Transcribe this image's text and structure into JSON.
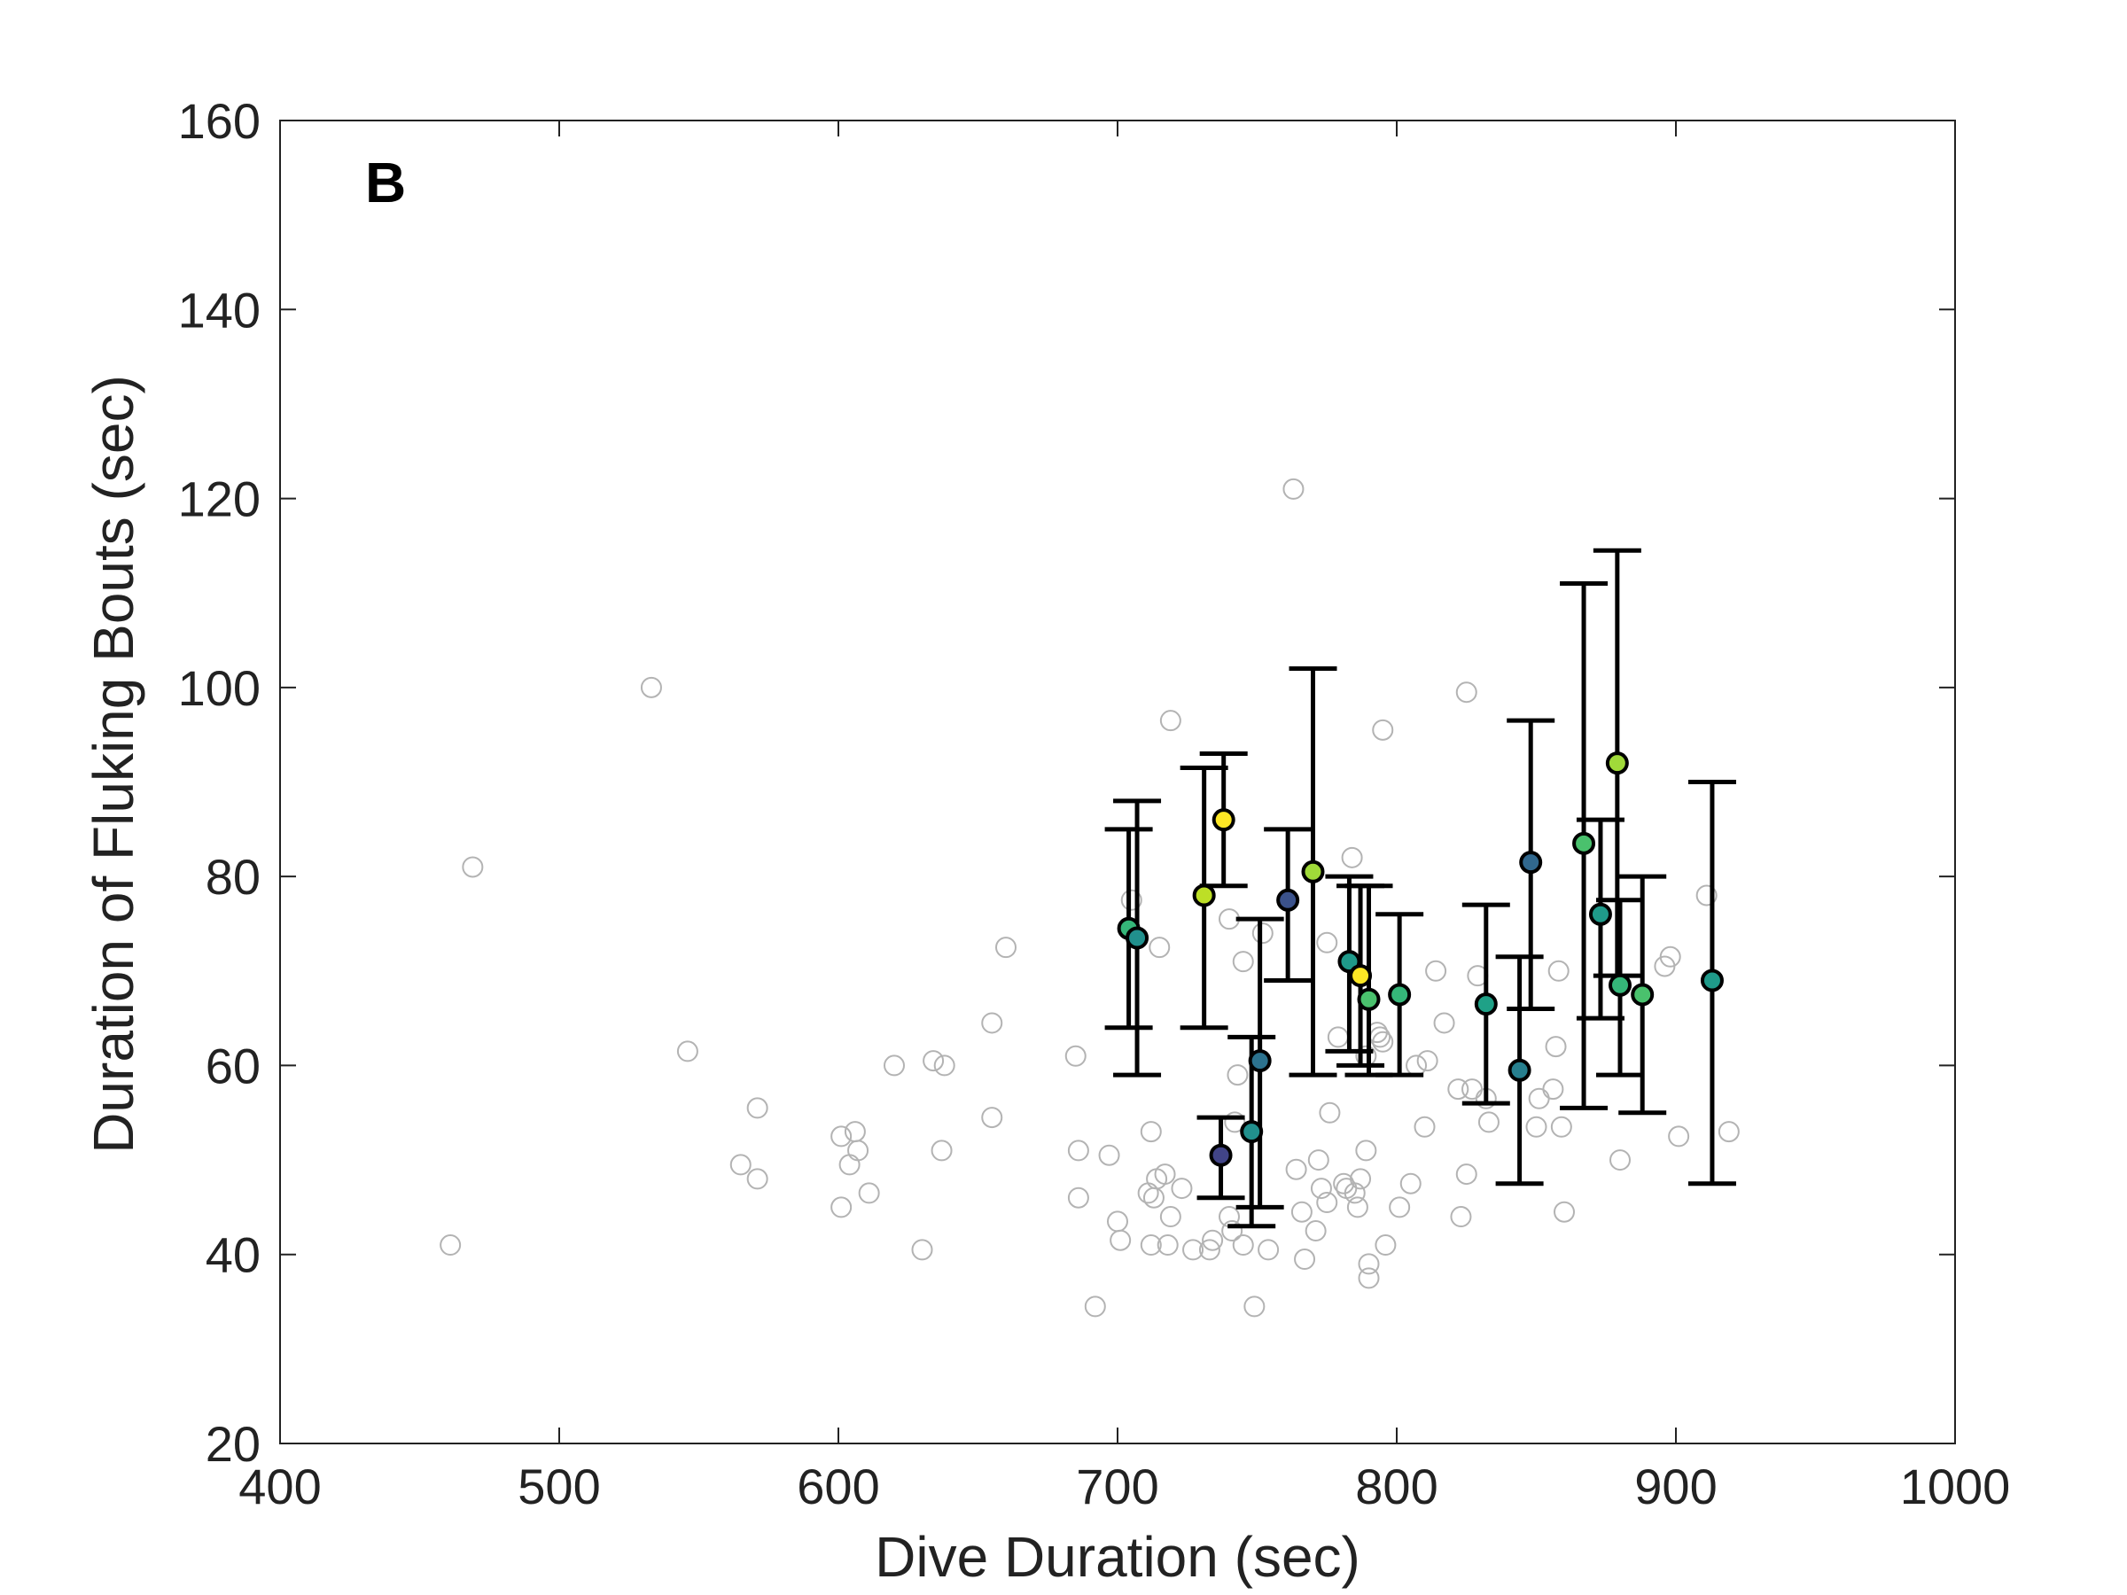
{
  "chart_data": {
    "type": "scatter",
    "title": "",
    "panel_label": "B",
    "xlabel": "Dive Duration (sec)",
    "ylabel": "Duration of Fluking Bouts (sec)",
    "xlim": [
      400,
      1000
    ],
    "ylim": [
      20,
      160
    ],
    "xticks": [
      400,
      500,
      600,
      700,
      800,
      900,
      1000
    ],
    "yticks": [
      20,
      40,
      60,
      80,
      100,
      120,
      140,
      160
    ],
    "grid": false,
    "legend": "none",
    "colors": {
      "background_point": "#b3b3b3",
      "error_bar": "#000000",
      "axis": "#222222"
    },
    "background_points": [
      [
        461,
        41
      ],
      [
        469,
        81
      ],
      [
        533,
        100
      ],
      [
        546,
        61.5
      ],
      [
        565,
        49.5
      ],
      [
        571,
        55.5
      ],
      [
        571,
        48
      ],
      [
        601,
        52.5
      ],
      [
        601,
        45
      ],
      [
        604,
        49.5
      ],
      [
        606,
        53
      ],
      [
        607,
        51
      ],
      [
        611,
        46.5
      ],
      [
        620,
        60
      ],
      [
        630,
        40.5
      ],
      [
        634,
        60.5
      ],
      [
        637,
        51
      ],
      [
        638,
        60
      ],
      [
        655,
        54.5
      ],
      [
        655,
        64.5
      ],
      [
        660,
        72.5
      ],
      [
        685,
        61
      ],
      [
        686,
        51
      ],
      [
        686,
        46
      ],
      [
        692,
        34.5
      ],
      [
        697,
        50.5
      ],
      [
        700,
        43.5
      ],
      [
        701,
        41.5
      ],
      [
        705,
        77.5
      ],
      [
        711,
        46.5
      ],
      [
        712,
        41
      ],
      [
        712,
        53
      ],
      [
        713,
        46
      ],
      [
        714,
        48
      ],
      [
        715,
        72.5
      ],
      [
        717,
        48.5
      ],
      [
        718,
        41
      ],
      [
        719,
        96.5
      ],
      [
        719,
        44
      ],
      [
        723,
        47
      ],
      [
        727,
        40.5
      ],
      [
        733,
        40.5
      ],
      [
        734,
        41.5
      ],
      [
        740,
        75.5
      ],
      [
        740,
        44
      ],
      [
        741,
        42.5
      ],
      [
        742,
        54
      ],
      [
        743,
        59
      ],
      [
        745,
        41
      ],
      [
        745,
        71
      ],
      [
        749,
        34.5
      ],
      [
        752,
        74
      ],
      [
        754,
        40.5
      ],
      [
        763,
        121
      ],
      [
        764,
        49
      ],
      [
        766,
        44.5
      ],
      [
        767,
        39.5
      ],
      [
        771,
        42.5
      ],
      [
        772,
        50
      ],
      [
        773,
        47
      ],
      [
        775,
        45.5
      ],
      [
        775,
        73
      ],
      [
        776,
        55
      ],
      [
        779,
        63
      ],
      [
        781,
        47.5
      ],
      [
        782,
        47
      ],
      [
        784,
        82
      ],
      [
        785,
        46.5
      ],
      [
        786,
        45
      ],
      [
        787,
        48
      ],
      [
        789,
        61
      ],
      [
        789,
        51
      ],
      [
        790,
        39
      ],
      [
        790,
        37.5
      ],
      [
        793,
        63.5
      ],
      [
        794,
        63
      ],
      [
        795,
        62.5
      ],
      [
        795,
        95.5
      ],
      [
        796,
        41
      ],
      [
        801,
        45
      ],
      [
        805,
        47.5
      ],
      [
        807,
        60
      ],
      [
        810,
        53.5
      ],
      [
        811,
        60.5
      ],
      [
        814,
        70
      ],
      [
        817,
        64.5
      ],
      [
        822,
        57.5
      ],
      [
        823,
        44
      ],
      [
        825,
        48.5
      ],
      [
        825,
        99.5
      ],
      [
        827,
        57.5
      ],
      [
        829,
        69.5
      ],
      [
        832,
        56.5
      ],
      [
        833,
        54
      ],
      [
        850,
        53.5
      ],
      [
        851,
        56.5
      ],
      [
        856,
        57.5
      ],
      [
        857,
        62
      ],
      [
        858,
        70
      ],
      [
        859,
        53.5
      ],
      [
        860,
        44.5
      ],
      [
        880,
        50
      ],
      [
        896,
        70.5
      ],
      [
        898,
        71.5
      ],
      [
        901,
        52.5
      ],
      [
        911,
        78
      ],
      [
        919,
        53
      ]
    ],
    "series": [
      {
        "x": 704,
        "y": 74.5,
        "low": 64,
        "high": 85,
        "color": "#35b779"
      },
      {
        "x": 707,
        "y": 73.5,
        "low": 59,
        "high": 88,
        "color": "#21908d"
      },
      {
        "x": 731,
        "y": 78,
        "low": 64,
        "high": 91.5,
        "color": "#bddf26"
      },
      {
        "x": 737,
        "y": 50.5,
        "low": 46,
        "high": 54.5,
        "color": "#414487"
      },
      {
        "x": 738,
        "y": 86,
        "low": 79,
        "high": 93,
        "color": "#fde725"
      },
      {
        "x": 748,
        "y": 53,
        "low": 43,
        "high": 63,
        "color": "#21908d"
      },
      {
        "x": 751,
        "y": 60.5,
        "low": 45,
        "high": 75.5,
        "color": "#2c728e"
      },
      {
        "x": 761,
        "y": 77.5,
        "low": 69,
        "high": 85,
        "color": "#3b528b"
      },
      {
        "x": 770,
        "y": 80.5,
        "low": 59,
        "high": 102,
        "color": "#a0da39"
      },
      {
        "x": 783,
        "y": 71,
        "low": 61.5,
        "high": 80,
        "color": "#1f9a8a"
      },
      {
        "x": 787,
        "y": 69.5,
        "low": 60,
        "high": 79,
        "color": "#fde725"
      },
      {
        "x": 790,
        "y": 67,
        "low": 59,
        "high": 79,
        "color": "#4ac16d"
      },
      {
        "x": 801,
        "y": 67.5,
        "low": 59,
        "high": 76,
        "color": "#35b779"
      },
      {
        "x": 832,
        "y": 66.5,
        "low": 56,
        "high": 77,
        "color": "#1fa187"
      },
      {
        "x": 844,
        "y": 59.5,
        "low": 47.5,
        "high": 71.5,
        "color": "#277f8e"
      },
      {
        "x": 848,
        "y": 81.5,
        "low": 66,
        "high": 96.5,
        "color": "#31688e"
      },
      {
        "x": 867,
        "y": 83.5,
        "low": 55.5,
        "high": 111,
        "color": "#4ac16d"
      },
      {
        "x": 873,
        "y": 76,
        "low": 65,
        "high": 86,
        "color": "#1f9a8a"
      },
      {
        "x": 879,
        "y": 92,
        "low": 69.5,
        "high": 114.5,
        "color": "#a0da39"
      },
      {
        "x": 880,
        "y": 68.5,
        "low": 59,
        "high": 77.5,
        "color": "#35b779"
      },
      {
        "x": 888,
        "y": 67.5,
        "low": 55,
        "high": 80,
        "color": "#4ac16d"
      },
      {
        "x": 913,
        "y": 69,
        "low": 47.5,
        "high": 90,
        "color": "#1f9a8a"
      }
    ]
  }
}
